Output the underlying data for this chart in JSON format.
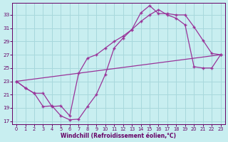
{
  "bg_color": "#c8eef0",
  "line_color": "#993399",
  "grid_color": "#a8d8dc",
  "text_color": "#660066",
  "xlabel": "Windchill (Refroidissement éolien,°C)",
  "xlim_min": -0.5,
  "xlim_max": 23.5,
  "ylim_min": 16.5,
  "ylim_max": 34.8,
  "yticks": [
    17,
    19,
    21,
    23,
    25,
    27,
    29,
    31,
    33
  ],
  "xticks": [
    0,
    1,
    2,
    3,
    4,
    5,
    6,
    7,
    8,
    9,
    10,
    11,
    12,
    13,
    14,
    15,
    16,
    17,
    18,
    19,
    20,
    21,
    22,
    23
  ],
  "line1_x": [
    0,
    1,
    2,
    3,
    4,
    5,
    6,
    7,
    8,
    9,
    10,
    11,
    12,
    13,
    14,
    15,
    16,
    17,
    18,
    19,
    20,
    21,
    22,
    23
  ],
  "line1_y": [
    23.0,
    22.0,
    21.2,
    19.2,
    19.3,
    17.8,
    17.2,
    17.3,
    19.2,
    21.0,
    24.0,
    28.0,
    29.5,
    30.8,
    33.3,
    34.4,
    33.2,
    33.2,
    33.0,
    33.0,
    31.2,
    29.2,
    27.2,
    27.0
  ],
  "line2_x": [
    0,
    1,
    2,
    3,
    4,
    5,
    6,
    7,
    8,
    9,
    10,
    11,
    12,
    13,
    14,
    15,
    16,
    17,
    18,
    19,
    20,
    21,
    22,
    23
  ],
  "line2_y": [
    23.0,
    22.0,
    21.2,
    21.2,
    19.2,
    19.3,
    17.8,
    24.2,
    26.5,
    27.0,
    28.0,
    29.0,
    29.8,
    30.8,
    32.0,
    33.0,
    33.8,
    33.0,
    32.5,
    31.5,
    25.2,
    25.0,
    25.0,
    27.0
  ],
  "line3_x": [
    0,
    23
  ],
  "line3_y": [
    23.0,
    27.0
  ]
}
